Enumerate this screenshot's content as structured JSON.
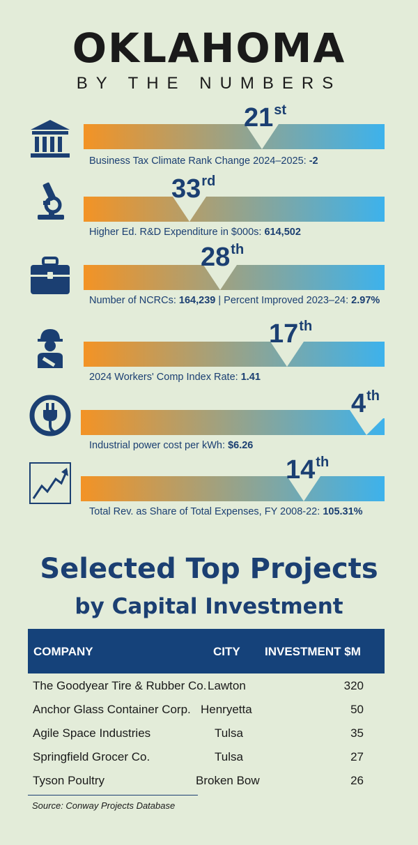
{
  "header": {
    "title": "OKLAHOMA",
    "subtitle": "BY THE NUMBERS"
  },
  "colors": {
    "bar_start": "#f39325",
    "bar_end": "#3db2ec",
    "navy": "#1b3f72",
    "table_header_bg": "#15427a",
    "background": "#e3ecd9"
  },
  "stats": [
    {
      "icon": "bank-building-icon",
      "rank": "21",
      "suffix": "st",
      "label": "Business Tax Climate Rank Change 2024–2025:",
      "value": "-2",
      "label2": ""
    },
    {
      "icon": "microscope-icon",
      "rank": "33",
      "suffix": "rd",
      "label": "Higher Ed. R&D Expenditure in $000s:",
      "value": "614,502",
      "label2": ""
    },
    {
      "icon": "briefcase-icon",
      "rank": "28",
      "suffix": "th",
      "label": "Number of NCRCs:",
      "value": "164,239",
      "label2": " | Percent Improved 2023–24:",
      "value2": "2.97%"
    },
    {
      "icon": "injured-worker-icon",
      "rank": "17",
      "suffix": "th",
      "label": "2024 Workers' Comp Index Rate:",
      "value": "1.41",
      "label2": ""
    },
    {
      "icon": "power-plug-icon",
      "rank": "4",
      "suffix": "th",
      "label": "Industrial power cost per kWh:",
      "value": "$6.26",
      "label2": ""
    },
    {
      "icon": "growth-chart-icon",
      "rank": "14",
      "suffix": "th",
      "label": "Total Rev. as Share of Total Expenses, FY 2008-22:",
      "value": "105.31%",
      "label2": ""
    }
  ],
  "projects": {
    "title": "Selected Top Projects",
    "subtitle": "by Capital Investment",
    "headers": {
      "company": "COMPANY",
      "city": "CITY",
      "investment": "INVESTMENT $M"
    },
    "rows": [
      {
        "company": "The Goodyear Tire & Rubber Co.",
        "city": "Lawton",
        "investment": "320"
      },
      {
        "company": "Anchor Glass Container Corp.",
        "city": "Henryetta",
        "investment": "50"
      },
      {
        "company": "Agile Space Industries",
        "city": "Tulsa",
        "investment": "35"
      },
      {
        "company": "Springfield Grocer Co.",
        "city": "Tulsa",
        "investment": "27"
      },
      {
        "company": "Tyson Poultry",
        "city": "Broken Bow",
        "investment": "26"
      }
    ],
    "source": "Source: Conway Projects Database"
  }
}
